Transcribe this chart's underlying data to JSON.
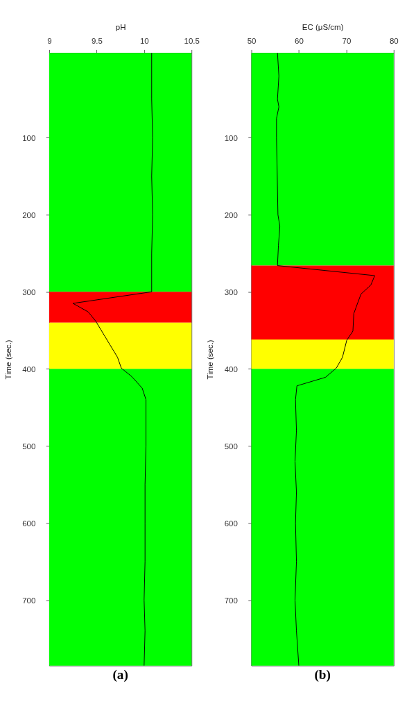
{
  "chart_data": [
    {
      "type": "line",
      "xlabel": "pH",
      "ylabel": "Time (sec.)",
      "annotations": [
        "(a)"
      ],
      "xlim": [
        9,
        10.5
      ],
      "xticks": [
        9,
        9.5,
        10,
        10.5
      ],
      "ylim": [
        785,
        -10
      ],
      "yticks": [
        100,
        200,
        300,
        400,
        500,
        600,
        700
      ],
      "series": [
        {
          "color": "#000000",
          "x": [
            10.08,
            10.08,
            10.09,
            10.08,
            10.09,
            10.08,
            10.08,
            9.25,
            9.41,
            9.49,
            9.72,
            9.76,
            9.87,
            9.98,
            10.02,
            10.02,
            10.01,
            10.01,
            10.01,
            10.0,
            10.01,
            10.0
          ],
          "values": [
            -10,
            50,
            100,
            150,
            200,
            250,
            300,
            315,
            326,
            338,
            385,
            399,
            410,
            425,
            440,
            500,
            550,
            600,
            650,
            700,
            740,
            785
          ]
        }
      ],
      "bands": [
        {
          "axis": "y",
          "from": -10,
          "to": 300,
          "color": "#00ff00"
        },
        {
          "axis": "y",
          "from": 300,
          "to": 340,
          "color": "#ff0000"
        },
        {
          "axis": "y",
          "from": 340,
          "to": 400,
          "color": "#ffff00"
        },
        {
          "axis": "y",
          "from": 400,
          "to": 785,
          "color": "#00ff00"
        }
      ]
    },
    {
      "type": "line",
      "xlabel": "EC (μS/cm)",
      "ylabel": "Time (sec.)",
      "annotations": [
        "(b)"
      ],
      "xlim": [
        50,
        80
      ],
      "xticks": [
        50,
        60,
        70,
        80
      ],
      "ylim": [
        785,
        -10
      ],
      "yticks": [
        100,
        200,
        300,
        400,
        500,
        600,
        700
      ],
      "series": [
        {
          "color": "#000000",
          "x": [
            55.5,
            55.8,
            55.5,
            55.8,
            55.3,
            55.3,
            55.6,
            56.0,
            55.7,
            55.5,
            76,
            75.2,
            73.1,
            71.6,
            71.4,
            70.1,
            69.2,
            67.9,
            65.6,
            59.6,
            59.3,
            59.5,
            59.2,
            59.5,
            59.3,
            59.5,
            59.2,
            59.5,
            60
          ],
          "values": [
            -10,
            20,
            50,
            60,
            75,
            100,
            200,
            215,
            240,
            266,
            279,
            291,
            303,
            328,
            351,
            363,
            385,
            399,
            411,
            422,
            440,
            480,
            520,
            560,
            600,
            650,
            700,
            740,
            785
          ]
        }
      ],
      "bands": [
        {
          "axis": "y",
          "from": -10,
          "to": 266,
          "color": "#00ff00"
        },
        {
          "axis": "y",
          "from": 266,
          "to": 362,
          "color": "#ff0000"
        },
        {
          "axis": "y",
          "from": 362,
          "to": 400,
          "color": "#ffff00"
        },
        {
          "axis": "y",
          "from": 400,
          "to": 785,
          "color": "#00ff00"
        }
      ]
    }
  ]
}
